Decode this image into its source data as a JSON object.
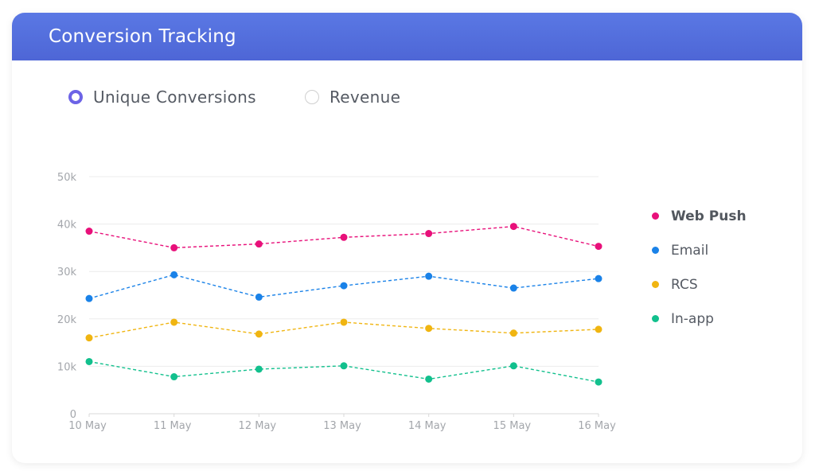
{
  "card": {
    "title": "Conversion Tracking"
  },
  "toggles": [
    {
      "label": "Unique Conversions",
      "selected": true
    },
    {
      "label": "Revenue",
      "selected": false
    }
  ],
  "colors": {
    "header": "#5471de",
    "radio_selected": "#6c63e6",
    "grid": "#ececec",
    "tick_text": "#a3a6ab"
  },
  "chart_data": {
    "type": "line",
    "x": [
      "10 May",
      "11 May",
      "12 May",
      "13 May",
      "14 May",
      "15 May",
      "16 May"
    ],
    "yticks": [
      "0",
      "10k",
      "20k",
      "30k",
      "40k",
      "50k"
    ],
    "ylim": [
      0,
      50000
    ],
    "grid": true,
    "legend_position": "right",
    "line_style": "dashed",
    "series": [
      {
        "name": "Web Push",
        "color": "#e8107a",
        "highlighted": true,
        "values": [
          38500,
          35000,
          35800,
          37200,
          38000,
          39500,
          35300
        ]
      },
      {
        "name": "Email",
        "color": "#1a82e8",
        "values": [
          24300,
          29300,
          24600,
          27000,
          29000,
          26500,
          28500
        ]
      },
      {
        "name": "RCS",
        "color": "#f0b511",
        "values": [
          16000,
          19300,
          16800,
          19300,
          18000,
          17000,
          17800
        ]
      },
      {
        "name": "In-app",
        "color": "#12c08d",
        "values": [
          11000,
          7800,
          9400,
          10100,
          7300,
          10100,
          6700
        ]
      }
    ]
  }
}
